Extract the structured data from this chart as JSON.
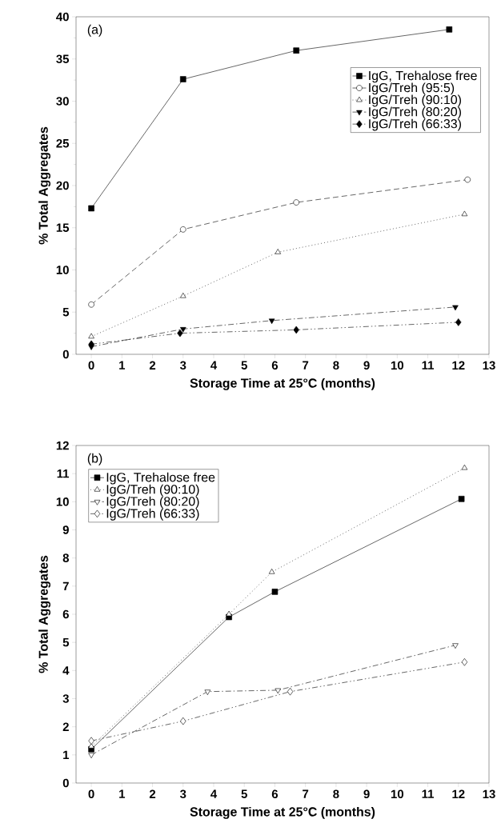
{
  "chart_data": [
    {
      "type": "line",
      "xlabel": "Storage Time at 25°C (months)",
      "ylabel": "%  Total Aggregates",
      "annotations": [
        "(a)"
      ],
      "xlim": [
        -0.5,
        13
      ],
      "xticks": [
        0,
        1,
        2,
        3,
        4,
        5,
        6,
        7,
        8,
        9,
        10,
        11,
        12,
        13
      ],
      "ylim": [
        0,
        40
      ],
      "yticks": [
        0,
        5,
        10,
        15,
        20,
        25,
        30,
        35,
        40
      ],
      "grid": false,
      "legend": "top right",
      "series": [
        {
          "name": "IgG, Trehalose free",
          "color": "#000000",
          "x": [
            0,
            3,
            6.7,
            11.7
          ],
          "values": [
            17.3,
            32.6,
            36,
            38.5
          ],
          "marker": "square",
          "line_style": "solid"
        },
        {
          "name": "IgG/Treh (95:5)",
          "color": "#000000",
          "x": [
            0,
            3,
            6.7,
            12.3
          ],
          "values": [
            5.9,
            14.8,
            18,
            20.7
          ],
          "marker": "circle",
          "line_style": "dashed"
        },
        {
          "name": "IgG/Treh (90:10)",
          "color": "#000000",
          "x": [
            0,
            3,
            6.1,
            12.2
          ],
          "values": [
            2.1,
            6.9,
            12.1,
            16.6
          ],
          "marker": "triangle",
          "line_style": "dotted"
        },
        {
          "name": "IgG/Treh (80:20)",
          "color": "#000000",
          "x": [
            0,
            3,
            5.9,
            11.9
          ],
          "values": [
            0.9,
            3.0,
            4.0,
            5.6
          ],
          "marker": "triangle-down",
          "line_style": "dashdot"
        },
        {
          "name": "IgG/Treh (66:33)",
          "color": "#000000",
          "x": [
            0,
            2.9,
            6.7,
            12
          ],
          "values": [
            1.2,
            2.5,
            2.9,
            3.8
          ],
          "marker": "diamond",
          "line_style": "dashdotdot"
        }
      ]
    },
    {
      "type": "line",
      "xlabel": "Storage Time at 25°C (months)",
      "ylabel": "%  Total Aggregates",
      "annotations": [
        "(b)"
      ],
      "xlim": [
        -0.5,
        13
      ],
      "xticks": [
        0,
        1,
        2,
        3,
        4,
        5,
        6,
        7,
        8,
        9,
        10,
        11,
        12,
        13
      ],
      "ylim": [
        0,
        12
      ],
      "yticks": [
        0,
        1,
        2,
        3,
        4,
        5,
        6,
        7,
        8,
        9,
        10,
        11,
        12
      ],
      "grid": false,
      "legend": "top left",
      "series": [
        {
          "name": "IgG, Trehalose free",
          "color": "#000000",
          "x": [
            0,
            4.5,
            6,
            12.1
          ],
          "values": [
            1.2,
            5.9,
            6.8,
            10.1
          ],
          "marker": "square",
          "line_style": "solid"
        },
        {
          "name": "IgG/Treh (90:10)",
          "color": "#000000",
          "x": [
            0,
            4.5,
            5.9,
            12.2
          ],
          "values": [
            1.3,
            6.0,
            7.5,
            11.2
          ],
          "marker": "triangle",
          "line_style": "dotted"
        },
        {
          "name": "IgG/Treh (80:20)",
          "color": "#000000",
          "x": [
            0,
            3.8,
            6.1,
            11.9
          ],
          "values": [
            1.0,
            3.25,
            3.3,
            4.9
          ],
          "marker": "triangle-down",
          "line_style": "dashdot"
        },
        {
          "name": "IgG/Treh (66:33)",
          "color": "#000000",
          "x": [
            0,
            3,
            6.5,
            12.2
          ],
          "values": [
            1.5,
            2.2,
            3.25,
            4.3
          ],
          "marker": "diamond",
          "line_style": "dashdotdot"
        }
      ]
    }
  ]
}
